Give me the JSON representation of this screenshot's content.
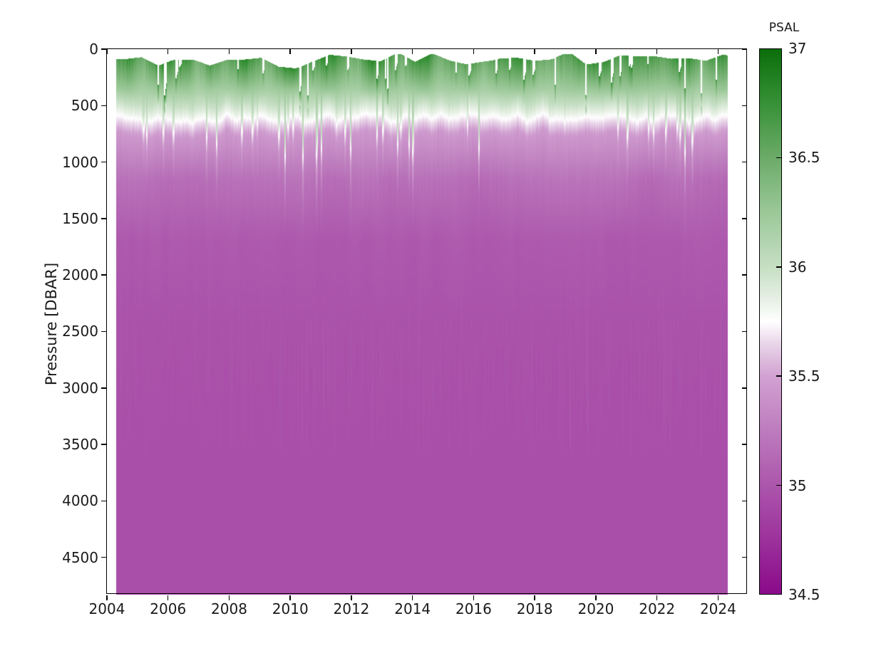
{
  "chart_data": {
    "type": "heatmap",
    "title": "",
    "x_axis": {
      "label": "",
      "range": [
        2004,
        2024.97
      ],
      "ticks": [
        2004,
        2006,
        2008,
        2010,
        2012,
        2014,
        2016,
        2018,
        2020,
        2022,
        2024
      ],
      "tick_labels": [
        "2004",
        "2006",
        "2008",
        "2010",
        "2012",
        "2014",
        "2016",
        "2018",
        "2020",
        "2022",
        "2024"
      ]
    },
    "y_axis": {
      "label": "Pressure [DBAR]",
      "range": [
        0,
        4830
      ],
      "inverted": true,
      "ticks": [
        0,
        500,
        1000,
        1500,
        2000,
        2500,
        3000,
        3500,
        4000,
        4500
      ],
      "tick_labels": [
        "0",
        "500",
        "1000",
        "1500",
        "2000",
        "2500",
        "3000",
        "3500",
        "4000",
        "4500"
      ]
    },
    "colorbar": {
      "title": "PSAL",
      "range": [
        34.5,
        37
      ],
      "tick_values": [
        37,
        36.5,
        36,
        35.5,
        35,
        34.5
      ],
      "tick_labels": [
        "37",
        "36.5",
        "36",
        "35.5",
        "35",
        "34.5"
      ],
      "inner_tick_values": [
        36.5,
        36,
        35.5,
        35
      ]
    },
    "colormap_stops": [
      {
        "v": 34.5,
        "c": "#8a0a8a"
      },
      {
        "v": 34.75,
        "c": "#9c329c"
      },
      {
        "v": 35.0,
        "c": "#ac56ac"
      },
      {
        "v": 35.25,
        "c": "#bd7cbd"
      },
      {
        "v": 35.5,
        "c": "#d2a2d2"
      },
      {
        "v": 35.65,
        "c": "#e9d6e9"
      },
      {
        "v": 35.75,
        "c": "#ffffff"
      },
      {
        "v": 35.85,
        "c": "#e7f0e5"
      },
      {
        "v": 36.0,
        "c": "#c6dfc4"
      },
      {
        "v": 36.25,
        "c": "#9bc898"
      },
      {
        "v": 36.5,
        "c": "#6cab69"
      },
      {
        "v": 36.75,
        "c": "#379137"
      },
      {
        "v": 37.0,
        "c": "#0a6e0a"
      }
    ],
    "data_coverage": {
      "time_start": 2004.3,
      "time_end": 2024.3,
      "pressure_max_dbar": 4830
    },
    "representative_profile": {
      "pressure_dbar": [
        100,
        300,
        500,
        630,
        800,
        1000,
        1200,
        1700,
        2400,
        3500,
        4800
      ],
      "psal": [
        36.7,
        36.3,
        36.05,
        35.75,
        35.45,
        35.25,
        35.1,
        35.02,
        34.97,
        34.96,
        34.96
      ]
    },
    "texture": {
      "seed": 20240417,
      "surface_start_dbar": {
        "base": 95,
        "block_amp": 55,
        "slow_amp": 45,
        "gap_prob": 0.05,
        "gap_extra_max": 240,
        "clamp": [
          45,
          430
        ]
      },
      "white_line_dbar": {
        "base": 608,
        "amp": 42,
        "jitter": 30,
        "spike_prob": 0.06,
        "spike_max": 330
      },
      "surface_psal": {
        "base": 36.62,
        "amp": 0.22,
        "jitter": 0.15
      },
      "mid_psal_1100": {
        "base": 35.16,
        "amp": 0.05
      },
      "deep_psal": {
        "base": 34.955,
        "streak_prob": 0.45,
        "streak_amp": 0.04,
        "streak_depth_min": 2400,
        "streak_depth_max": 3600
      }
    }
  }
}
